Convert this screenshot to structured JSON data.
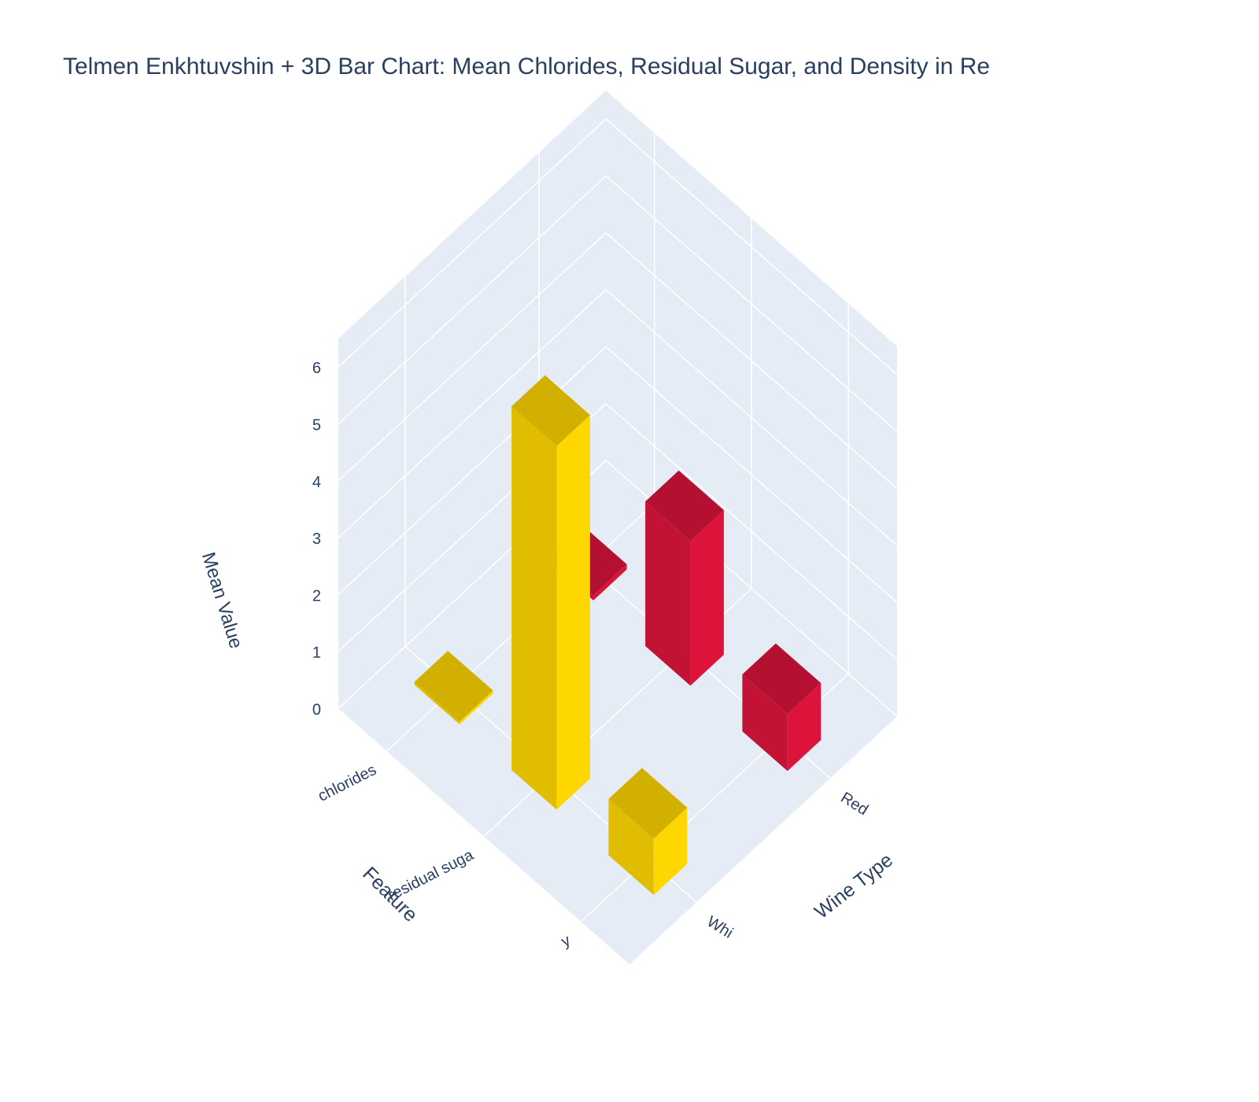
{
  "chart_data": {
    "type": "bar3d",
    "title": "Telmen Enkhtuvshin + 3D Bar Chart: Mean Chlorides, Residual Sugar, and Density in Re",
    "xlabel": "Wine Type",
    "ylabel": "Feature",
    "zlabel": "Mean Value",
    "x_categories": [
      "Red",
      "White"
    ],
    "x_tick_labels": [
      "Red",
      "Whi"
    ],
    "y_categories": [
      "chlorides",
      "residual sugar",
      "density"
    ],
    "y_tick_labels": [
      "chlorides",
      "residual suga",
      "y"
    ],
    "z_ticks": [
      0,
      1,
      2,
      3,
      4,
      5,
      6
    ],
    "zlim": [
      0,
      6.5
    ],
    "grid": true,
    "series": [
      {
        "name": "Red",
        "color": "#dc143c",
        "values": [
          0.09,
          2.54,
          1.0
        ]
      },
      {
        "name": "White",
        "color": "#ffd700",
        "values": [
          0.05,
          6.39,
          0.99
        ]
      }
    ]
  }
}
